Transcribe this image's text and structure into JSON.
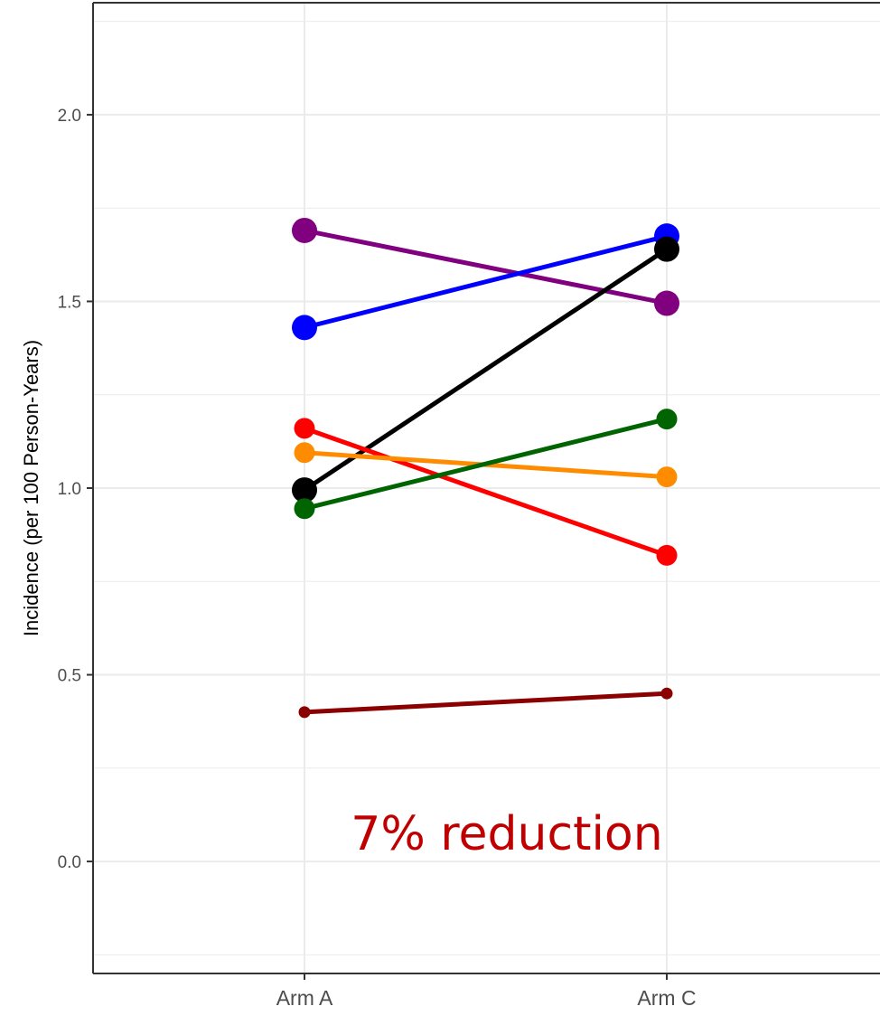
{
  "chart_data": {
    "type": "line",
    "categories": [
      "Arm A",
      "Arm C"
    ],
    "ylabel": "Incidence (per 100 Person-Years)",
    "xlabel": "",
    "ylim": [
      -0.3,
      2.3
    ],
    "y_ticks": [
      "0.0",
      "0.5",
      "1.0",
      "1.5",
      "2.0"
    ],
    "grid": true,
    "legend": "none",
    "series": [
      {
        "color": "#800080",
        "values": [
          1.69,
          1.495
        ],
        "marker": "large"
      },
      {
        "color": "#0000ff",
        "values": [
          1.43,
          1.675
        ],
        "marker": "large"
      },
      {
        "color": "#000000",
        "values": [
          0.995,
          1.64
        ],
        "marker": "large"
      },
      {
        "color": "#ff0000",
        "values": [
          1.16,
          0.82
        ],
        "marker": "medium"
      },
      {
        "color": "#ff8c00",
        "values": [
          1.095,
          1.03
        ],
        "marker": "medium"
      },
      {
        "color": "#006400",
        "values": [
          0.945,
          1.185
        ],
        "marker": "medium"
      },
      {
        "color": "#8b0000",
        "values": [
          0.4,
          0.45
        ],
        "marker": "small"
      }
    ],
    "annotations": [
      {
        "text": "7% reduction",
        "color": "#c00000"
      }
    ]
  }
}
